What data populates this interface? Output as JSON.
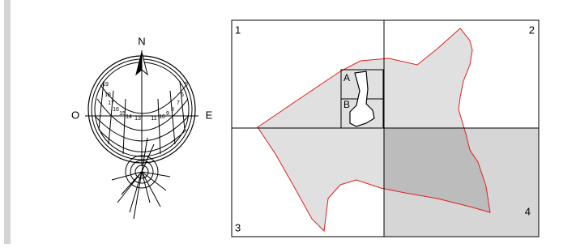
{
  "compass": {
    "north": "N",
    "west": "O",
    "east": "E",
    "hours": [
      "19",
      "18",
      "17",
      "16",
      "15",
      "14",
      "13",
      "11",
      "10",
      "9",
      "8",
      "7",
      "6",
      "5"
    ]
  },
  "map": {
    "quadrants": [
      "1",
      "2",
      "3",
      "4"
    ],
    "zones": [
      "A",
      "B"
    ]
  }
}
